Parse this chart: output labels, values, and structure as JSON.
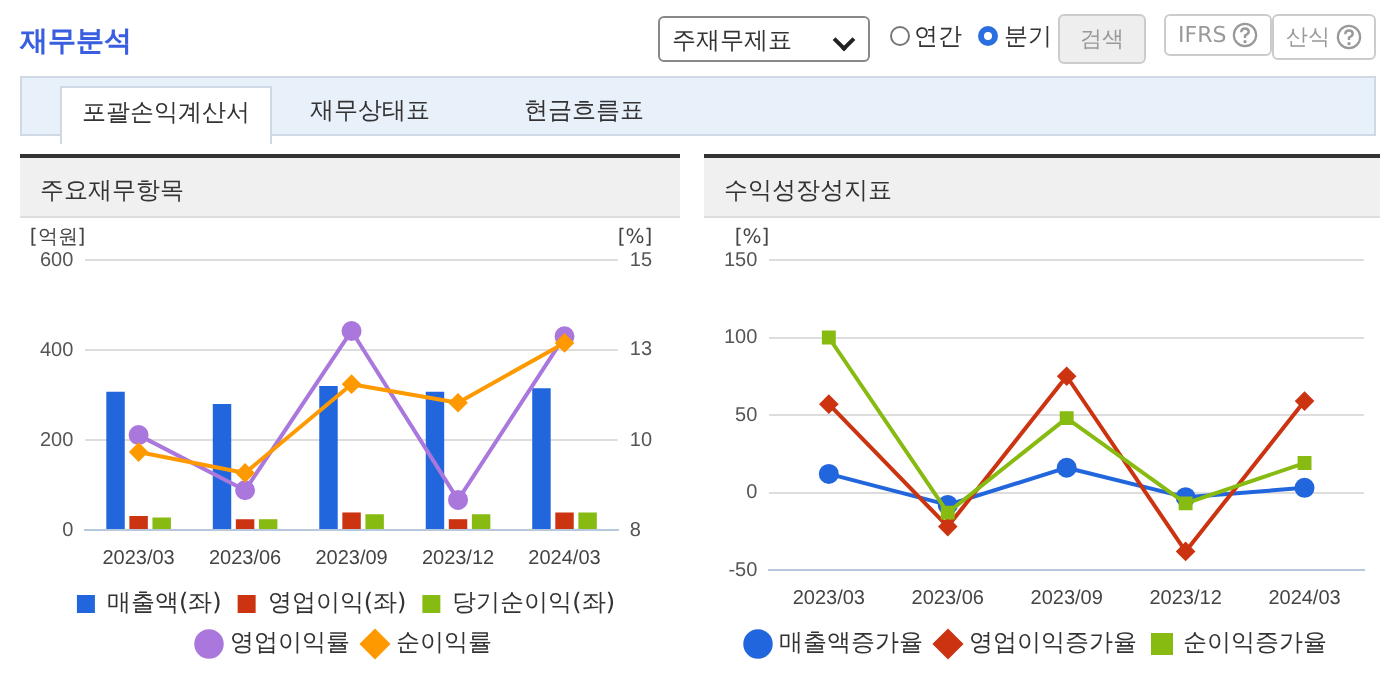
{
  "chart_data": [
    {
      "type": "bar",
      "title": "주요재무항목",
      "ylabel": "[억원]",
      "y2label": "[%]",
      "annotations": [
        "재무분석",
        "주재무제표",
        "연간",
        "분기",
        "검색",
        "IFRS",
        "산식",
        "포괄손익계산서",
        "재무상태표",
        "현금흐름표"
      ],
      "categories": [
        "2023/03",
        "2023/06",
        "2023/09",
        "2023/12",
        "2024/03"
      ],
      "series": [
        {
          "name": "매출액(좌)",
          "type": "bar",
          "color": "#2266dd",
          "values": [
            307,
            280,
            320,
            307,
            315
          ]
        },
        {
          "name": "영업이익(좌)",
          "type": "bar",
          "color": "#cc3311",
          "values": [
            31,
            24,
            39,
            24,
            39
          ]
        },
        {
          "name": "당기순이익(좌)",
          "type": "bar",
          "color": "#88bb11",
          "values": [
            28,
            24,
            35,
            35,
            39
          ]
        },
        {
          "name": "영업이익률",
          "type": "line",
          "axis": "y2",
          "marker": "circle",
          "color": "#aa77dd",
          "values": [
            10.46,
            9.03,
            13.16,
            8.78,
            13.02
          ]
        },
        {
          "name": "순이익률",
          "type": "line",
          "axis": "y2",
          "marker": "diamond",
          "color": "#ff9900",
          "values": [
            10.02,
            9.48,
            11.78,
            11.3,
            12.85
          ]
        }
      ],
      "ylim": [
        0,
        600
      ],
      "yticks": [
        0,
        200,
        400,
        600
      ],
      "y2lim": [
        8,
        15
      ],
      "y2ticks": [
        8,
        {
          "value": 10.333,
          "label": "10"
        },
        {
          "value": 12.667,
          "label": "13"
        },
        15
      ],
      "grid": "y",
      "legend": "bottom"
    },
    {
      "type": "line",
      "title": "수익성장성지표",
      "ylabel": "[%]",
      "categories": [
        "2023/03",
        "2023/06",
        "2023/09",
        "2023/12",
        "2024/03"
      ],
      "series": [
        {
          "name": "매출액증가율",
          "marker": "circle",
          "color": "#2266dd",
          "values": [
            12,
            -8,
            16,
            -3,
            3
          ]
        },
        {
          "name": "영업이익증가율",
          "marker": "diamond",
          "color": "#cc3311",
          "values": [
            57,
            -22,
            75,
            -38,
            59
          ]
        },
        {
          "name": "순이익증가율",
          "marker": "square",
          "color": "#88bb11",
          "values": [
            100,
            -13,
            48,
            -7,
            19
          ]
        }
      ],
      "ylim": [
        -50,
        150
      ],
      "yticks": [
        -50,
        0,
        50,
        100,
        150
      ],
      "grid": "y",
      "legend": "bottom"
    }
  ]
}
